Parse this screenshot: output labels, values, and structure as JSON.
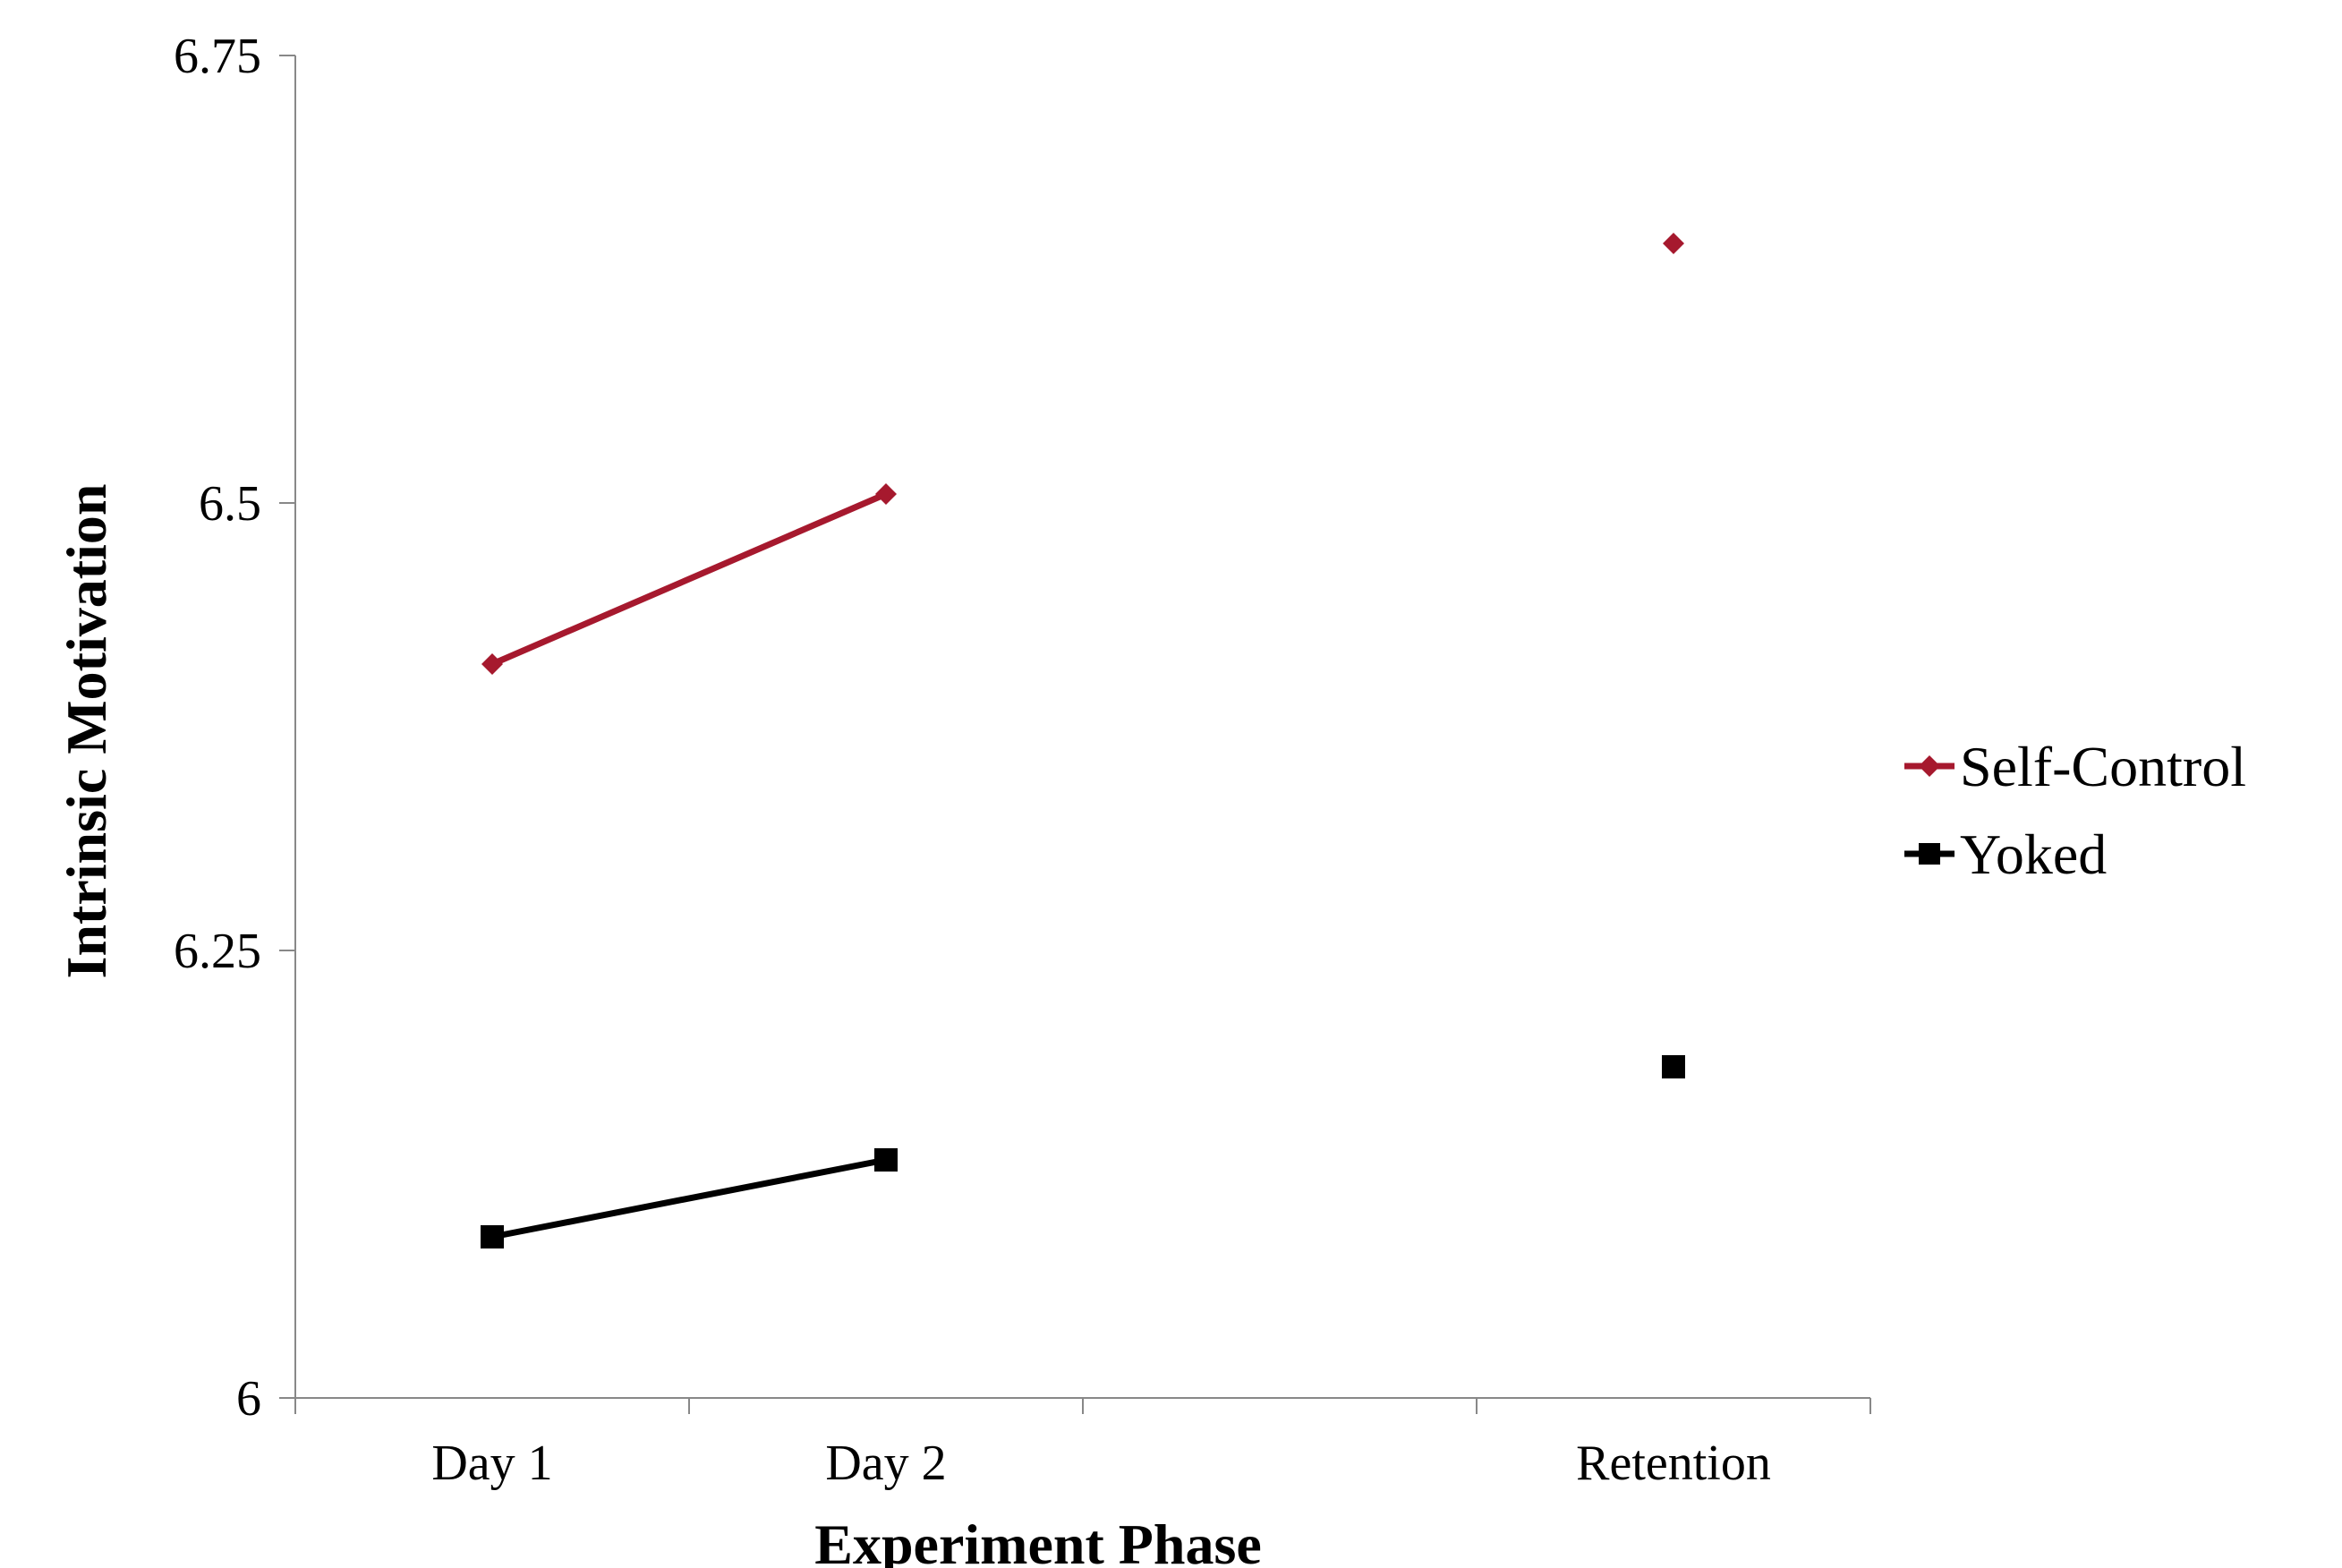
{
  "chart_data": {
    "type": "line",
    "title": "",
    "xlabel": "Experiment Phase",
    "ylabel": "Intrinsic Motivation",
    "categories": [
      "Day 1",
      "Day 2",
      "",
      "Retention"
    ],
    "ylim": [
      6,
      6.75
    ],
    "yticks": [
      "6",
      "6.25",
      "6.5",
      "6.75"
    ],
    "yticks_values": [
      6,
      6.25,
      6.5,
      6.75
    ],
    "grid": false,
    "legend_position": "right",
    "series": [
      {
        "name": "Self-Control",
        "values": [
          6.41,
          6.505,
          null,
          6.645
        ],
        "color": "#a6192e",
        "marker": "diamond"
      },
      {
        "name": "Yoked",
        "values": [
          6.09,
          6.133,
          null,
          6.185
        ],
        "color": "#000000",
        "marker": "square"
      }
    ]
  }
}
